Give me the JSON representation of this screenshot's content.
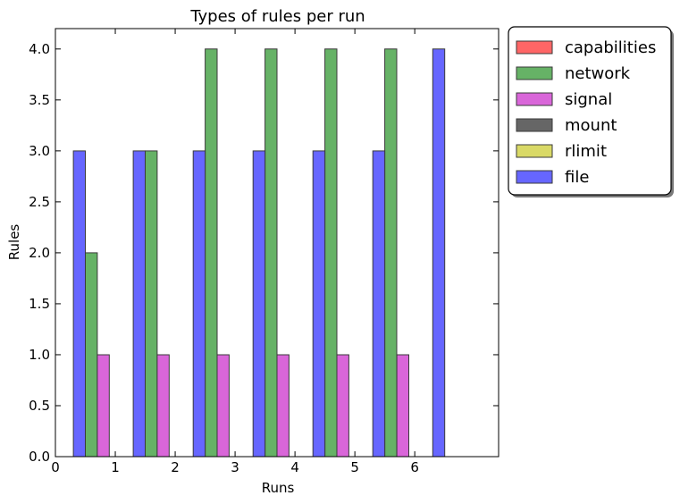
{
  "chart_data": {
    "type": "bar",
    "title": "Types of rules per run",
    "xlabel": "Runs",
    "ylabel": "Rules",
    "xlim": [
      0,
      7.4
    ],
    "ylim": [
      0,
      4.2
    ],
    "xticks": [
      "0",
      "1",
      "2",
      "3",
      "4",
      "5",
      "6"
    ],
    "yticks": [
      "0.0",
      "0.5",
      "1.0",
      "1.5",
      "2.0",
      "2.5",
      "3.0",
      "3.5",
      "4.0"
    ],
    "grid": false,
    "legend_position": "outside-top-right",
    "series": [
      {
        "name": "capabilities",
        "color": "#ff6666",
        "x": [
          0.4,
          1.4,
          2.4,
          3.4,
          4.4,
          5.4,
          6.4
        ],
        "values": [
          0,
          0,
          0,
          0,
          0,
          0,
          0
        ]
      },
      {
        "name": "network",
        "color": "#66b266",
        "x": [
          0.6,
          1.6,
          2.6,
          3.6,
          4.6,
          5.6,
          6.6
        ],
        "values": [
          2,
          3,
          4,
          4,
          4,
          4,
          0
        ]
      },
      {
        "name": "signal",
        "color": "#d966d9",
        "x": [
          0.8,
          1.8,
          2.8,
          3.8,
          4.8,
          5.8,
          6.8
        ],
        "values": [
          1,
          1,
          1,
          1,
          1,
          1,
          0
        ]
      },
      {
        "name": "mount",
        "color": "#666666",
        "x": [
          1.0,
          2.0,
          3.0,
          4.0,
          5.0,
          6.0,
          7.0
        ],
        "values": [
          0,
          0,
          0,
          0,
          0,
          0,
          0
        ]
      },
      {
        "name": "rlimit",
        "color": "#d9d966",
        "x": [
          0.2,
          1.2,
          2.2,
          3.2,
          4.2,
          5.2,
          6.2
        ],
        "values": [
          0,
          0,
          0,
          0,
          0,
          0,
          0
        ]
      },
      {
        "name": "file",
        "color": "#6666ff",
        "x": [
          0.4,
          1.4,
          2.4,
          3.4,
          4.4,
          5.4,
          6.4
        ],
        "values": [
          3,
          3,
          3,
          3,
          3,
          3,
          4
        ]
      }
    ]
  }
}
